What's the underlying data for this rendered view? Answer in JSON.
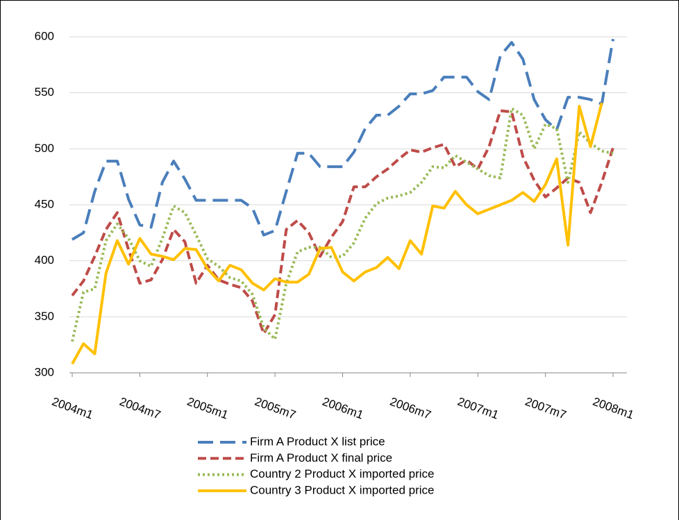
{
  "chart_data": {
    "type": "line",
    "categories": [
      "2004m1",
      null,
      null,
      null,
      null,
      null,
      "2004m7",
      null,
      null,
      null,
      null,
      null,
      "2005m1",
      null,
      null,
      null,
      null,
      null,
      "2005m7",
      null,
      null,
      null,
      null,
      null,
      "2006m1",
      null,
      null,
      null,
      null,
      null,
      "2006m7",
      null,
      null,
      null,
      null,
      null,
      "2007m1",
      null,
      null,
      null,
      null,
      null,
      "2007m7",
      null,
      null,
      null,
      null,
      null,
      "2008m1"
    ],
    "series": [
      {
        "name": "Firm A Product X list price",
        "color": "#4a7ebb",
        "style": "long-dash",
        "values": [
          419,
          425,
          462,
          489,
          489,
          455,
          432,
          430,
          470,
          489,
          473,
          454,
          454,
          454,
          454,
          454,
          447,
          423,
          427,
          462,
          496,
          496,
          484,
          484,
          484,
          497,
          518,
          530,
          530,
          538,
          549,
          549,
          552,
          564,
          564,
          564,
          551,
          544,
          583,
          595,
          580,
          544,
          526,
          517,
          546,
          546,
          544,
          540,
          598
        ]
      },
      {
        "name": "Firm A Product X final price",
        "color": "#be4b48",
        "style": "dashed",
        "values": [
          369,
          382,
          404,
          428,
          443,
          410,
          380,
          383,
          401,
          428,
          417,
          380,
          396,
          383,
          379,
          376,
          364,
          335,
          352,
          428,
          436,
          425,
          404,
          421,
          435,
          466,
          466,
          475,
          482,
          491,
          499,
          497,
          501,
          504,
          484,
          490,
          482,
          502,
          534,
          533,
          493,
          472,
          457,
          465,
          474,
          470,
          443,
          470,
          501
        ]
      },
      {
        "name": "Country 2 Product X  imported price",
        "color": "#98b954",
        "style": "dotted",
        "values": [
          328,
          372,
          375,
          418,
          433,
          420,
          400,
          395,
          420,
          449,
          443,
          423,
          402,
          395,
          385,
          382,
          370,
          340,
          330,
          380,
          408,
          412,
          412,
          403,
          404,
          416,
          438,
          451,
          456,
          458,
          461,
          470,
          484,
          483,
          494,
          488,
          482,
          476,
          474,
          536,
          530,
          500,
          522,
          518,
          470,
          515,
          505,
          498,
          496
        ]
      },
      {
        "name": "Country 3 Product X imported price",
        "color": "#ffc000",
        "style": "solid",
        "values": [
          308,
          326,
          317,
          389,
          418,
          397,
          420,
          406,
          404,
          401,
          411,
          410,
          393,
          382,
          396,
          392,
          380,
          374,
          384,
          381,
          381,
          388,
          411,
          412,
          390,
          382,
          390,
          394,
          403,
          393,
          418,
          406,
          449,
          447,
          462,
          450,
          442,
          446,
          450,
          454,
          461,
          453,
          468,
          491,
          414,
          538,
          502,
          541,
          null
        ]
      }
    ],
    "ylim": [
      300,
      600
    ],
    "yticks": [
      300,
      350,
      400,
      450,
      500,
      550,
      600
    ],
    "grid": true,
    "legend": "bottom"
  }
}
